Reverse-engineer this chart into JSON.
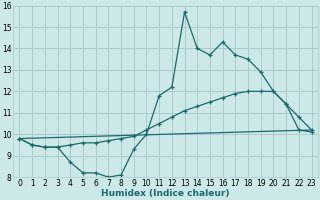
{
  "xlabel": "Humidex (Indice chaleur)",
  "xlim": [
    -0.5,
    23.5
  ],
  "ylim": [
    8,
    16
  ],
  "xticks": [
    0,
    1,
    2,
    3,
    4,
    5,
    6,
    7,
    8,
    9,
    10,
    11,
    12,
    13,
    14,
    15,
    16,
    17,
    18,
    19,
    20,
    21,
    22,
    23
  ],
  "yticks": [
    8,
    9,
    10,
    11,
    12,
    13,
    14,
    15,
    16
  ],
  "bg_color": "#cce8e8",
  "grid_color": "#aacccc",
  "line_color": "#1a6b6b",
  "line1_x": [
    0,
    1,
    2,
    3,
    4,
    5,
    6,
    7,
    8,
    9,
    10,
    11,
    12,
    13,
    14,
    15,
    16,
    17,
    18,
    19,
    20,
    21,
    22,
    23
  ],
  "line1_y": [
    9.8,
    9.5,
    9.4,
    9.4,
    8.7,
    8.2,
    8.2,
    8.0,
    8.1,
    9.3,
    10.0,
    11.8,
    12.2,
    15.7,
    14.0,
    13.7,
    14.3,
    13.7,
    13.5,
    12.9,
    12.0,
    11.4,
    10.2,
    10.1
  ],
  "line2_x": [
    0,
    1,
    2,
    3,
    4,
    5,
    6,
    7,
    8,
    9,
    10,
    11,
    12,
    13,
    14,
    15,
    16,
    17,
    18,
    19,
    20,
    21,
    22,
    23
  ],
  "line2_y": [
    9.8,
    9.5,
    9.4,
    9.4,
    9.5,
    9.6,
    9.6,
    9.7,
    9.8,
    9.9,
    10.2,
    10.5,
    10.8,
    11.1,
    11.3,
    11.5,
    11.7,
    11.9,
    12.0,
    12.0,
    12.0,
    11.4,
    10.8,
    10.2
  ],
  "line3_x": [
    0,
    23
  ],
  "line3_y": [
    9.8,
    10.2
  ]
}
